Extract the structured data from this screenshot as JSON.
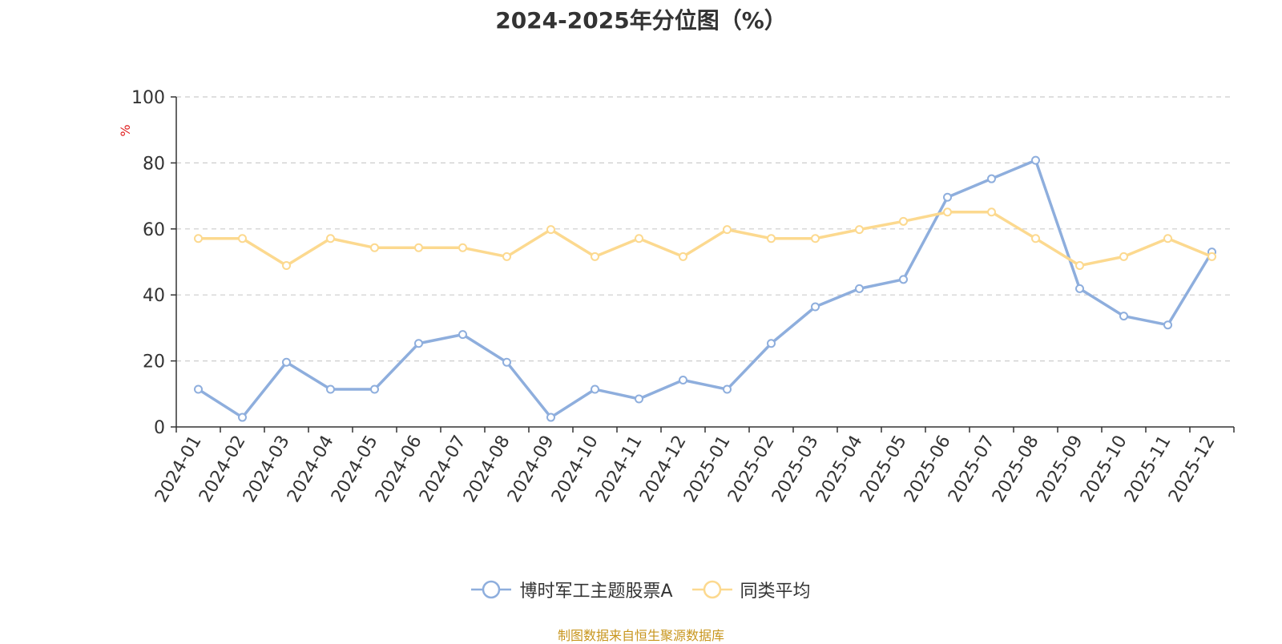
{
  "chart_data": {
    "type": "line",
    "title": "2024-2025年分位图（%）",
    "ylabel": "%",
    "xlabel": "",
    "ylim": [
      0,
      100
    ],
    "yticks": [
      0,
      20,
      40,
      60,
      80,
      100
    ],
    "grid": "horizontal dashed",
    "legend_position": "bottom",
    "categories": [
      "2024-01",
      "2024-02",
      "2024-03",
      "2024-04",
      "2024-05",
      "2024-06",
      "2024-07",
      "2024-08",
      "2024-09",
      "2024-10",
      "2024-11",
      "2024-12",
      "2025-01",
      "2025-02",
      "2025-03",
      "2025-04",
      "2025-05",
      "2025-06",
      "2025-07",
      "2025-08",
      "2025-09",
      "2025-10",
      "2025-11",
      "2025-12"
    ],
    "series": [
      {
        "name": "博时军工主题股票A",
        "color": "#8eaedd",
        "values": [
          11.4,
          2.9,
          19.6,
          11.4,
          11.4,
          25.3,
          28.0,
          19.6,
          2.9,
          11.4,
          8.5,
          14.2,
          11.4,
          25.3,
          36.4,
          41.9,
          44.7,
          69.6,
          75.2,
          80.8,
          41.9,
          33.6,
          30.9,
          53.0
        ]
      },
      {
        "name": "同类平均",
        "color": "#fcd98f",
        "values": [
          57.1,
          57.1,
          48.9,
          57.1,
          54.3,
          54.3,
          54.3,
          51.6,
          59.8,
          51.6,
          57.1,
          51.6,
          59.8,
          57.1,
          57.1,
          59.8,
          62.3,
          65.1,
          65.1,
          57.1,
          48.9,
          51.6,
          57.1,
          51.6
        ]
      }
    ]
  },
  "footer": {
    "source": "制图数据来自恒生聚源数据库"
  }
}
